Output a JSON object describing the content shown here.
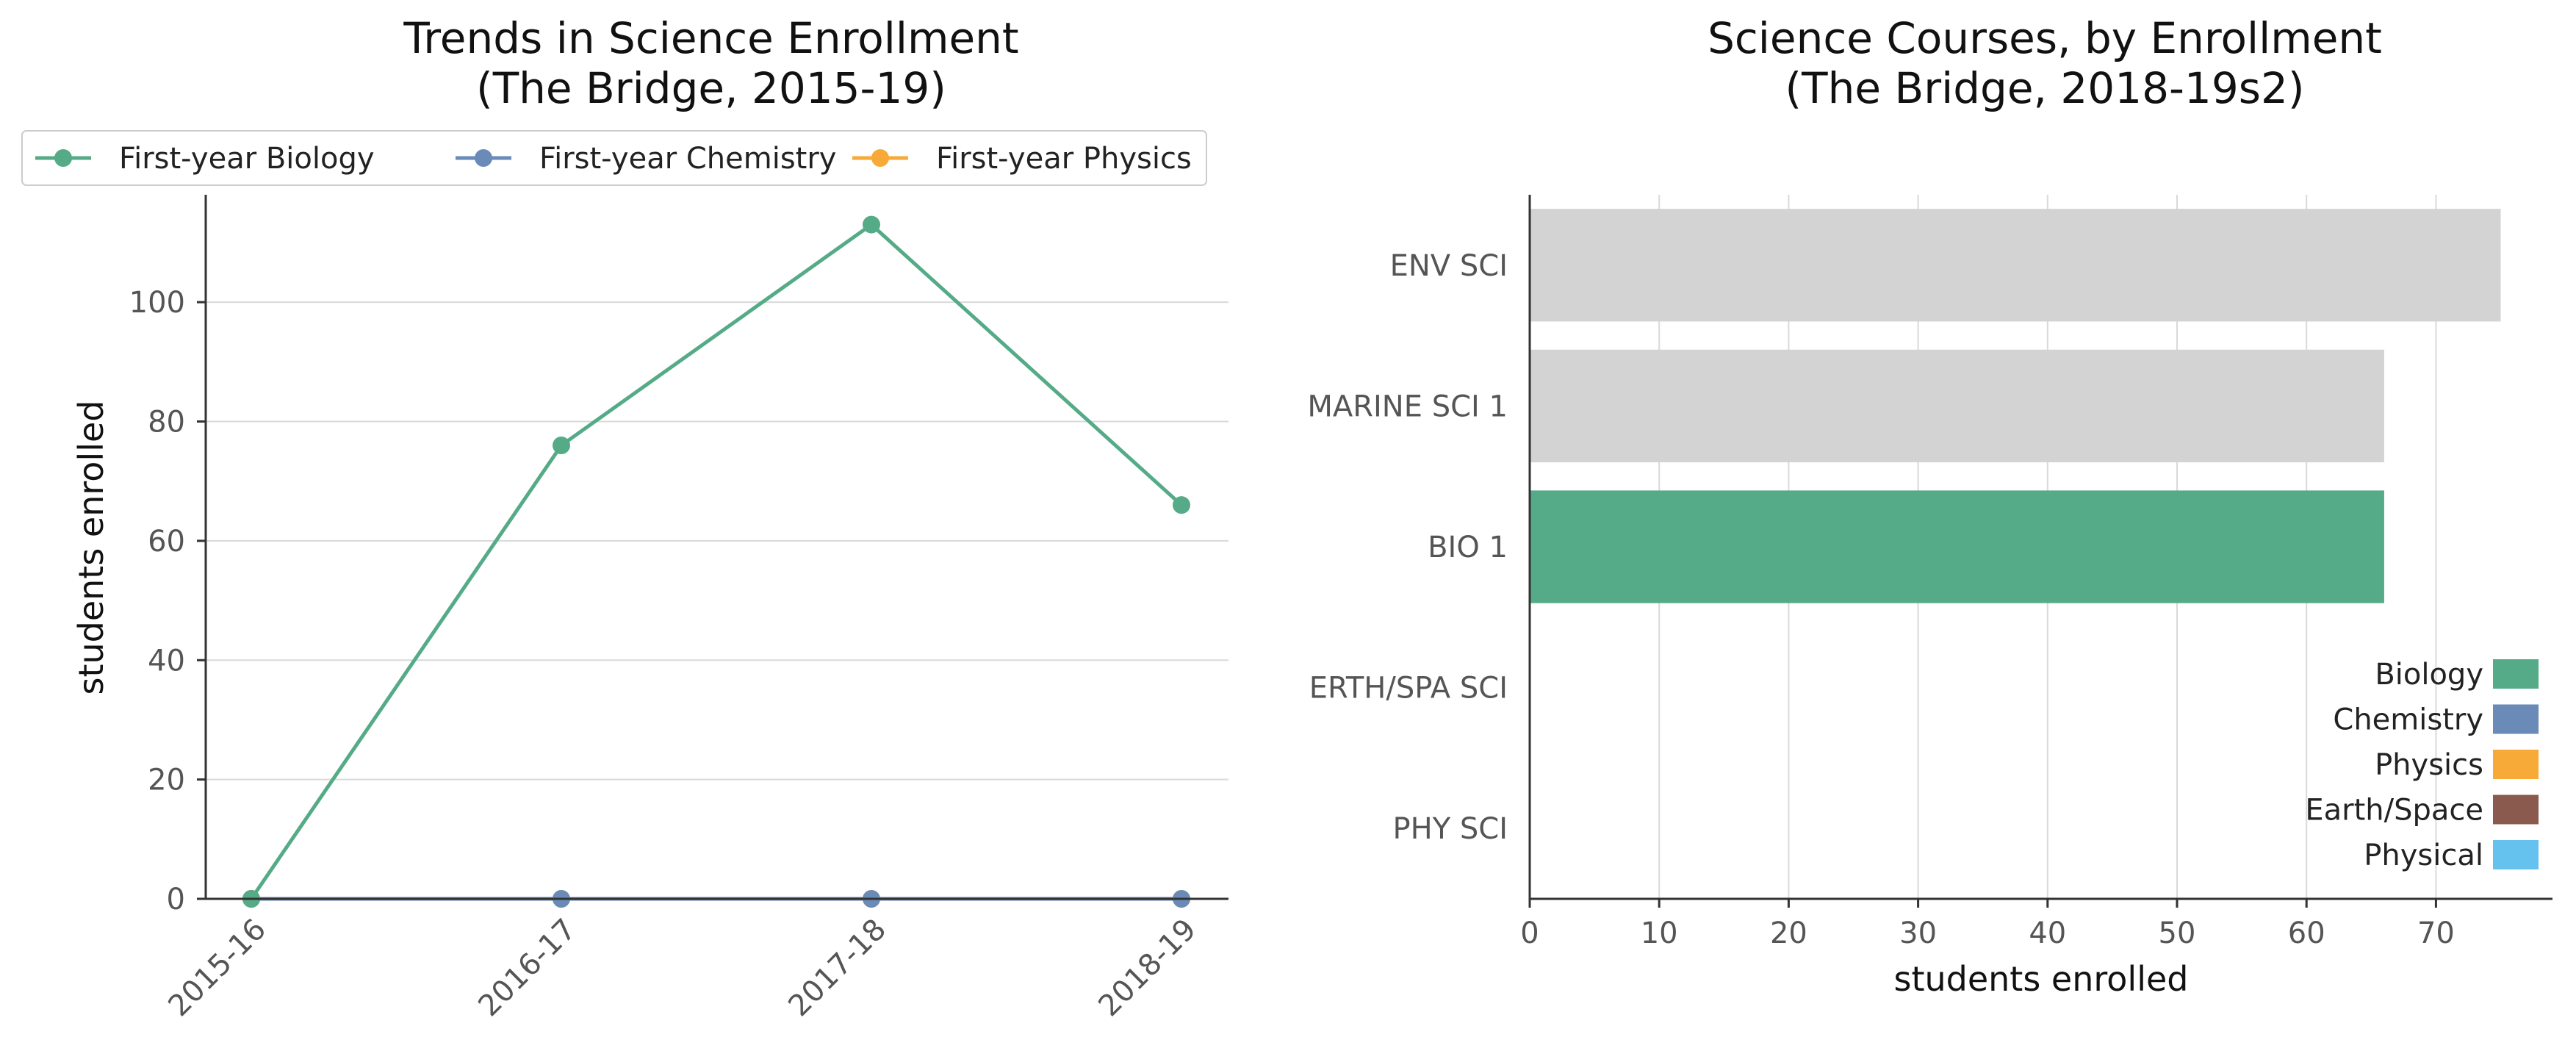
{
  "chart_data": [
    {
      "type": "line",
      "title": "Trends in Science Enrollment",
      "subtitle": "(The Bridge, 2015-19)",
      "ylabel": "students enrolled",
      "xlabel": "",
      "categories": [
        "2015-16",
        "2016-17",
        "2017-18",
        "2018-19"
      ],
      "ylim": [
        0,
        118
      ],
      "yticks": [
        0,
        20,
        40,
        60,
        80,
        100
      ],
      "grid": "horizontal",
      "legend_placement": "top",
      "series": [
        {
          "name": "First-year Biology",
          "color": "#55ab87",
          "values": [
            0,
            76,
            113,
            66
          ]
        },
        {
          "name": "First-year Chemistry",
          "color": "#6a8bb8",
          "values": [
            0,
            0,
            0,
            0
          ]
        },
        {
          "name": "First-year Physics",
          "color": "#f7aa38",
          "values": [
            0,
            0,
            0,
            0
          ]
        }
      ]
    },
    {
      "type": "bar",
      "orientation": "horizontal",
      "title": "Science Courses, by Enrollment",
      "subtitle": "(The Bridge, 2018-19s2)",
      "xlabel": "students enrolled",
      "ylabel": "",
      "xlim": [
        0,
        79
      ],
      "xticks": [
        0,
        10,
        20,
        30,
        40,
        50,
        60,
        70
      ],
      "grid": "vertical",
      "legend_placement": "lower-right",
      "categories": [
        "ENV SCI",
        "MARINE SCI 1",
        "BIO 1",
        "ERTH/SPA SCI",
        "PHY SCI"
      ],
      "values": [
        75,
        66,
        66,
        0,
        0
      ],
      "bar_colors": [
        "#d3d3d3",
        "#d3d3d3",
        "#55ab87",
        "#d3d3d3",
        "#d3d3d3"
      ],
      "legend": [
        {
          "name": "Biology",
          "color": "#55ab87"
        },
        {
          "name": "Chemistry",
          "color": "#6a8bb8"
        },
        {
          "name": "Physics",
          "color": "#f7aa38"
        },
        {
          "name": "Earth/Space",
          "color": "#8b5a4e"
        },
        {
          "name": "Physical",
          "color": "#65c2ef"
        }
      ]
    }
  ]
}
